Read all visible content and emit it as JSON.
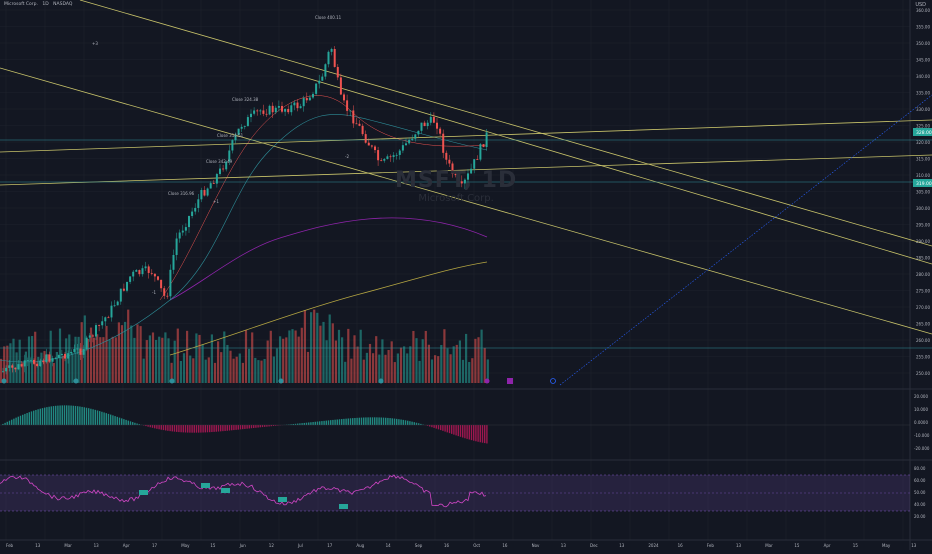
{
  "legend": {
    "symbol": "Microsoft Corp.",
    "interval": "1D",
    "exchange": "NASDAQ"
  },
  "corner_label": "USD",
  "watermark": {
    "ticker": "MSFT, 1D",
    "name": "Microsoft Corp."
  },
  "annotations": {
    "top_note": "Close 400.11",
    "left_note": "Close 324.38",
    "left_note2": "Close 314.51",
    "mid_note": "Close 342.49",
    "mid_note2": "Close 316.96",
    "small1": "-2",
    "small2": "-1",
    "small3": "+1",
    "small4": "+3"
  },
  "price_axis": {
    "labels": [
      "360.00",
      "355.00",
      "350.00",
      "345.00",
      "340.00",
      "335.00",
      "330.00",
      "325.00",
      "320.00",
      "315.00",
      "310.00",
      "305.00",
      "300.00",
      "295.00",
      "290.00",
      "285.00",
      "280.00",
      "275.00",
      "270.00",
      "265.00",
      "260.00",
      "255.00",
      "250.00"
    ],
    "current_price": "328.00",
    "current_price2": "319.00"
  },
  "macd_axis": {
    "labels": [
      "20.000",
      "10.000",
      "0.0000",
      "-10.000",
      "-20.000"
    ]
  },
  "rsi_axis": {
    "labels": [
      "80.00",
      "60.00",
      "50.00",
      "40.00",
      "20.00"
    ]
  },
  "time_axis": {
    "labels": [
      "Feb",
      "13",
      "Mar",
      "13",
      "Apr",
      "17",
      "May",
      "15",
      "Jun",
      "12",
      "Jul",
      "17",
      "Aug",
      "14",
      "Sep",
      "16",
      "Oct",
      "16",
      "Nov",
      "13",
      "Dec",
      "13",
      "2024",
      "16",
      "Feb",
      "13",
      "Mar",
      "15",
      "Apr",
      "15",
      "May",
      "13"
    ]
  },
  "colors": {
    "background": "#131722",
    "up": "#26a69a",
    "down": "#ef5350",
    "trendline": "#c8c36a",
    "teal_line": "#2e8f9a",
    "rsi_band": "#7e57c2",
    "rsi_line": "#d046c5",
    "ma_purple": "#8e24aa",
    "ma_olive": "#b5a642",
    "grid": "#1e222d"
  }
}
